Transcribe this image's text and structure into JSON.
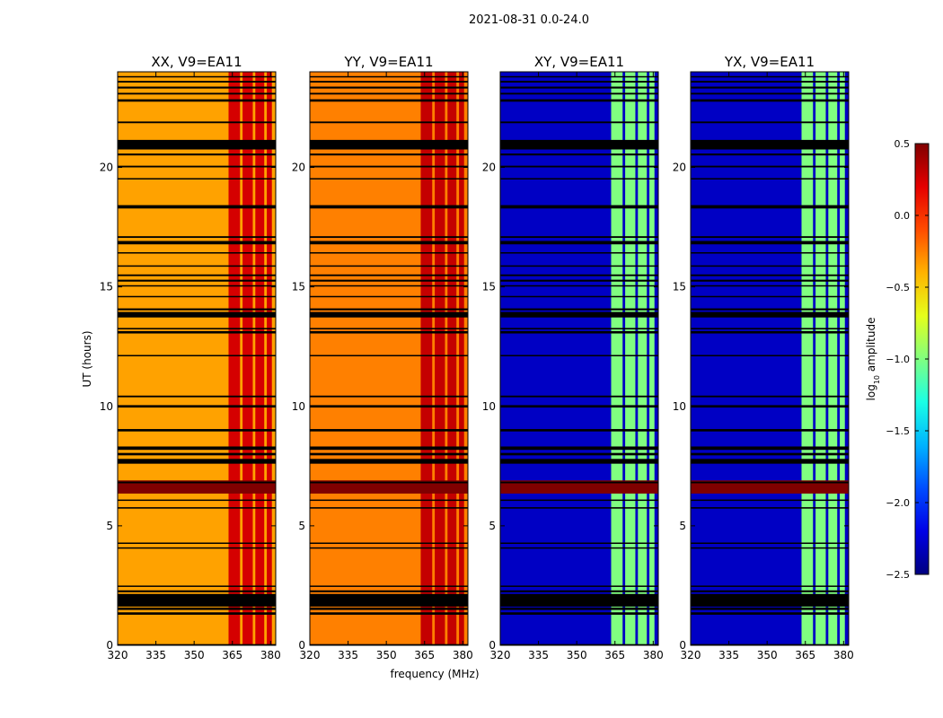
{
  "chart_data": {
    "type": "heatmap",
    "suptitle": "2021-08-31 0.0-24.0",
    "xlabel": "frequency (MHz)",
    "ylabel": "UT (hours)",
    "xlim": [
      320,
      382
    ],
    "ylim": [
      0,
      24
    ],
    "xticks": [
      320,
      335,
      350,
      365,
      380
    ],
    "xtick_labels": [
      "320",
      "335",
      "350",
      "365",
      "380"
    ],
    "yticks": [
      0,
      5,
      10,
      15,
      20
    ],
    "ytick_labels": [
      "0",
      "5",
      "10",
      "15",
      "20"
    ],
    "colorbar": {
      "label": "log10 amplitude",
      "label_main": "log",
      "label_sub": "10",
      "label_rest": " amplitude",
      "vmin": -2.5,
      "vmax": 0.5,
      "ticks": [
        0.5,
        0.0,
        -0.5,
        -1.0,
        -1.5,
        -2.0,
        -2.5
      ],
      "tick_labels": [
        "0.5",
        "0.0",
        "−0.5",
        "−1.0",
        "−1.5",
        "−2.0",
        "−2.5"
      ],
      "colormap": "jet"
    },
    "flagged_color": "#000000",
    "panels": [
      {
        "title": "XX, V9=EA11",
        "pol": "XX",
        "base_level": -0.35,
        "band_level": 0.25,
        "rfi_level": 0.5
      },
      {
        "title": "YY, V9=EA11",
        "pol": "YY",
        "base_level": -0.25,
        "band_level": 0.3,
        "rfi_level": 0.5
      },
      {
        "title": "XY, V9=EA11",
        "pol": "XY",
        "base_level": -2.3,
        "band_level": -1.0,
        "rfi_level": 0.5
      },
      {
        "title": "YX, V9=EA11",
        "pol": "YX",
        "base_level": -2.3,
        "band_level": -1.0,
        "rfi_level": 0.5
      }
    ],
    "flagged_ut_ranges_hours": [
      [
        0.0,
        0.05
      ],
      [
        1.28,
        1.38
      ],
      [
        1.48,
        1.58
      ],
      [
        1.62,
        2.15
      ],
      [
        2.22,
        2.3
      ],
      [
        2.45,
        2.5
      ],
      [
        4.05,
        4.1
      ],
      [
        4.25,
        4.3
      ],
      [
        5.72,
        5.78
      ],
      [
        6.05,
        6.1
      ],
      [
        6.78,
        6.85
      ],
      [
        7.6,
        7.8
      ],
      [
        7.95,
        8.05
      ],
      [
        8.18,
        8.32
      ],
      [
        8.95,
        9.05
      ],
      [
        9.95,
        10.05
      ],
      [
        10.38,
        10.45
      ],
      [
        12.1,
        12.15
      ],
      [
        13.05,
        13.15
      ],
      [
        13.22,
        13.28
      ],
      [
        13.72,
        13.95
      ],
      [
        14.02,
        14.1
      ],
      [
        14.58,
        14.62
      ],
      [
        15.02,
        15.07
      ],
      [
        15.22,
        15.3
      ],
      [
        15.45,
        15.52
      ],
      [
        15.85,
        15.9
      ],
      [
        16.4,
        16.45
      ],
      [
        16.78,
        16.92
      ],
      [
        17.05,
        17.12
      ],
      [
        18.28,
        18.42
      ],
      [
        19.5,
        19.55
      ],
      [
        20.0,
        20.07
      ],
      [
        20.5,
        20.58
      ],
      [
        20.75,
        21.15
      ],
      [
        21.85,
        21.92
      ],
      [
        22.75,
        22.85
      ],
      [
        23.05,
        23.12
      ],
      [
        23.3,
        23.38
      ],
      [
        23.55,
        23.62
      ],
      [
        23.78,
        23.82
      ]
    ],
    "rfi_ut_ranges_hours": [
      [
        6.35,
        6.9
      ]
    ],
    "rfi_freq_bands_mhz": [
      [
        363.5,
        368
      ],
      [
        369,
        373
      ],
      [
        374,
        377.5
      ],
      [
        378.5,
        380.5
      ]
    ]
  }
}
